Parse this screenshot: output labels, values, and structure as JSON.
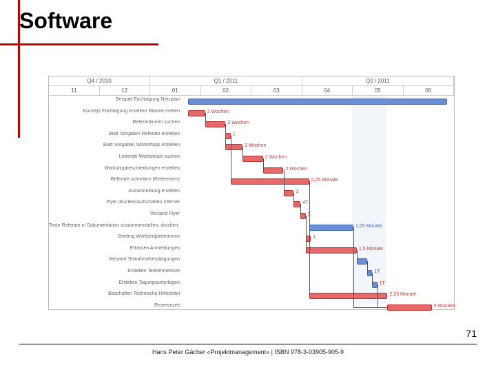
{
  "title": "Software",
  "page_number": "71",
  "footer": "Hans Peter Gächer «Projektmanagement» | ISBN 978-3-03905-905-9",
  "colors": {
    "accent": "#c00000",
    "bar_blue": "#6a8fd6",
    "bar_red": "#e46a6a",
    "shade": "#e8eef6"
  },
  "timeline": {
    "quarters": [
      "Q4 / 2010",
      "Q1 / 2011",
      "Q2 / 2011"
    ],
    "months": [
      "11",
      "12",
      "01",
      "02",
      "03",
      "04",
      "05",
      "06"
    ],
    "shade_month_index": 5,
    "label_col_width": 192,
    "month_width": 49.5
  },
  "tasks": [
    {
      "label": "Beispiel Fachtagung Netzplan",
      "start": 0.2,
      "dur": 7.6,
      "color": "blue",
      "tag": ""
    },
    {
      "label": "Konzept Fachtagung erstellen Räume mieten",
      "start": 0.2,
      "dur": 0.5,
      "color": "red",
      "tag": "2 Wochen"
    },
    {
      "label": "Referentinnen suchen",
      "start": 0.7,
      "dur": 0.6,
      "color": "red",
      "tag": "2 Wochen"
    },
    {
      "label": "Blatt Vorgaben Referate erstellen",
      "start": 1.3,
      "dur": 0.15,
      "color": "red",
      "tag": "1"
    },
    {
      "label": "Blatt Vorgaben Workshops erstellen",
      "start": 1.3,
      "dur": 0.5,
      "color": "red",
      "tag": "2 Wochen"
    },
    {
      "label": "Leitende Workshops suchen",
      "start": 1.8,
      "dur": 0.6,
      "color": "red",
      "tag": "2 Wochen"
    },
    {
      "label": "Workshopbeschreibungen erstellen",
      "start": 2.4,
      "dur": 0.6,
      "color": "red",
      "tag": "2 Wochen"
    },
    {
      "label": "Referate schreiben (Referenten)",
      "start": 1.45,
      "dur": 2.3,
      "color": "red",
      "tag": "2,25 Monate"
    },
    {
      "label": "Ausschreibung erstellen",
      "start": 3.0,
      "dur": 0.3,
      "color": "red",
      "tag": "3"
    },
    {
      "label": "Flyer drucken/Aufschalten Internet",
      "start": 3.3,
      "dur": 0.2,
      "color": "red",
      "tag": "4T"
    },
    {
      "label": "Versand Flyer",
      "start": 3.5,
      "dur": 0.15,
      "color": "red",
      "tag": "3"
    },
    {
      "label": "Texte Referate in Dokumentation zusammenstellen, drucken, bi...",
      "start": 3.75,
      "dur": 1.3,
      "color": "blue",
      "tag": "1,25 Monate",
      "tagcolor": "blue"
    },
    {
      "label": "Briefing Workshopleiterinnen",
      "start": 3.65,
      "dur": 0.15,
      "color": "red",
      "tag": "1"
    },
    {
      "label": "Erfassen Anmeldungen",
      "start": 3.65,
      "dur": 1.5,
      "color": "red",
      "tag": "1,5 Monate"
    },
    {
      "label": "Versand Teilnahmebestätigungen",
      "start": 5.15,
      "dur": 0.3,
      "color": "blue",
      "tag": ""
    },
    {
      "label": "Erstellen Teilnehmerliste",
      "start": 5.45,
      "dur": 0.15,
      "color": "blue",
      "tag": "1T"
    },
    {
      "label": "Erstellen Tagungsunterlagen",
      "start": 5.6,
      "dur": 0.15,
      "color": "blue",
      "tag": "1T"
    },
    {
      "label": "Beschaffen Technische Hilfsmittel",
      "start": 3.75,
      "dur": 2.3,
      "color": "red",
      "tag": "2,25 Monate"
    },
    {
      "label": "Reservezeit",
      "start": 6.05,
      "dur": 1.3,
      "color": "red",
      "tag": "5 Wochen"
    }
  ]
}
